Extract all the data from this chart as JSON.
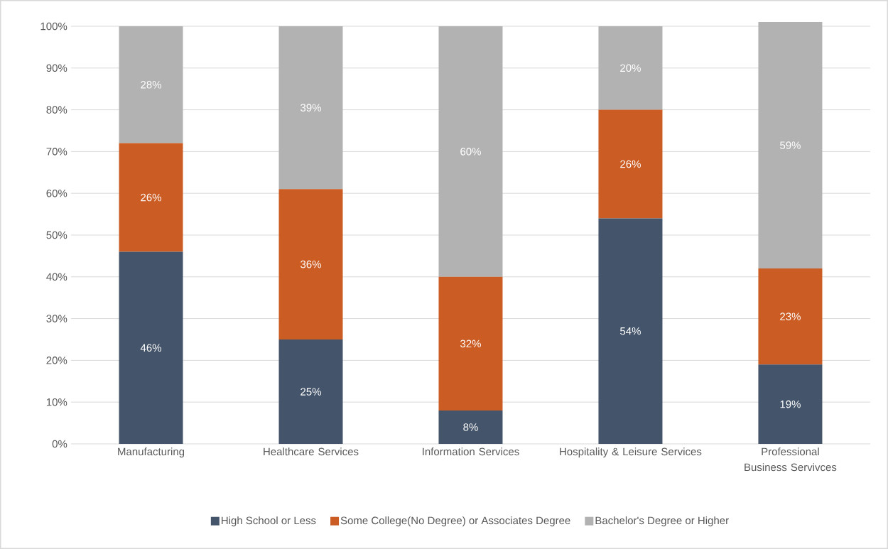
{
  "chart_data": {
    "type": "bar",
    "stacked": true,
    "categories": [
      "Manufacturing",
      "Healthcare Services",
      "Information Services",
      "Hospitality & Leisure Services",
      "Professional Business Servivces"
    ],
    "series": [
      {
        "name": "High School or Less",
        "color": "#44546a",
        "values": [
          46,
          25,
          8,
          54,
          19
        ],
        "value_labels": [
          "46%",
          "25%",
          "8%",
          "54%",
          "19%"
        ]
      },
      {
        "name": "Some College(No Degree) or Associates Degree",
        "color": "#cb5c24",
        "values": [
          26,
          36,
          32,
          26,
          23
        ],
        "value_labels": [
          "26%",
          "36%",
          "32%",
          "26%",
          "23%"
        ]
      },
      {
        "name": "Bachelor's Degree or Higher",
        "color": "#b2b2b2",
        "values": [
          28,
          39,
          60,
          20,
          59
        ],
        "value_labels": [
          "28%",
          "39%",
          "60%",
          "20%",
          "59%"
        ]
      }
    ],
    "ylim": [
      0,
      101
    ],
    "yticks": [
      {
        "value": 0,
        "label": "0%"
      },
      {
        "value": 10,
        "label": "10%"
      },
      {
        "value": 20,
        "label": "20%"
      },
      {
        "value": 30,
        "label": "30%"
      },
      {
        "value": 40,
        "label": "40%"
      },
      {
        "value": 50,
        "label": "50%"
      },
      {
        "value": 60,
        "label": "60%"
      },
      {
        "value": 70,
        "label": "70%"
      },
      {
        "value": 80,
        "label": "80%"
      },
      {
        "value": 90,
        "label": "90%"
      },
      {
        "value": 100,
        "label": "100%"
      }
    ],
    "grid": "y",
    "legend": "bottom"
  }
}
